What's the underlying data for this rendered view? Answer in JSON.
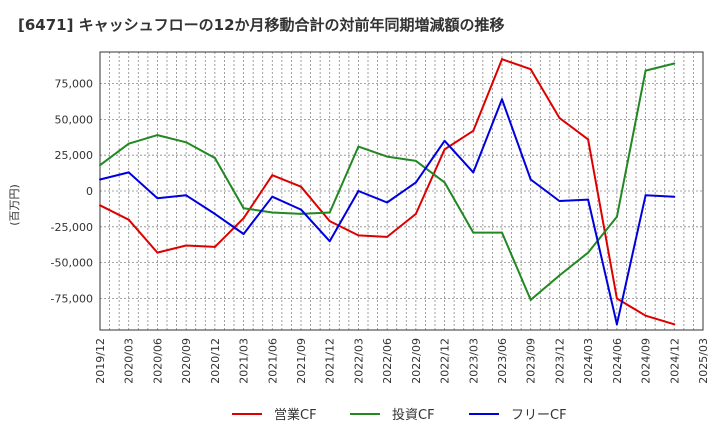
{
  "title": "[6471]  キャッシュフローの12か月移動合計の対前年同期増減額の推移",
  "chart_data": {
    "type": "line",
    "ylabel": "(百万円)",
    "ylim": [
      -97000,
      97000
    ],
    "yticks": [
      75000,
      50000,
      25000,
      0,
      -25000,
      -50000,
      -75000
    ],
    "ytick_labels": [
      "75,000",
      "50,000",
      "25,000",
      "0",
      "-25,000",
      "-50,000",
      "-75,000"
    ],
    "xlim": [
      "2019/12",
      "2025/03"
    ],
    "x_tick_labels": [
      "2019/12",
      "2020/03",
      "2020/06",
      "2020/09",
      "2020/12",
      "2021/03",
      "2021/06",
      "2021/09",
      "2021/12",
      "2022/03",
      "2022/06",
      "2022/09",
      "2022/12",
      "2023/03",
      "2023/06",
      "2023/09",
      "2023/12",
      "2024/03",
      "2024/06",
      "2024/09",
      "2024/12",
      "2025/03"
    ],
    "grid": true,
    "legend_position": "bottom",
    "series": [
      {
        "name": "営業CF",
        "color": "#dd0000",
        "x": [
          "2019/12",
          "2020/03",
          "2020/06",
          "2020/09",
          "2020/12",
          "2021/03",
          "2021/06",
          "2021/09",
          "2021/12",
          "2022/03",
          "2022/06",
          "2022/09",
          "2022/12",
          "2023/03",
          "2023/06",
          "2023/09",
          "2023/12",
          "2024/03",
          "2024/06",
          "2024/09",
          "2024/12"
        ],
        "values": [
          -10000,
          -20000,
          -43000,
          -38000,
          -39000,
          -19000,
          11000,
          3000,
          -21000,
          -31000,
          -32000,
          -16000,
          29000,
          42000,
          92000,
          85000,
          51000,
          36000,
          -75000,
          -87000,
          -93000
        ]
      },
      {
        "name": "投資CF",
        "color": "#228822",
        "x": [
          "2019/12",
          "2020/03",
          "2020/06",
          "2020/09",
          "2020/12",
          "2021/03",
          "2021/06",
          "2021/09",
          "2021/12",
          "2022/03",
          "2022/06",
          "2022/09",
          "2022/12",
          "2023/03",
          "2023/06",
          "2023/09",
          "2023/12",
          "2024/03",
          "2024/06",
          "2024/09",
          "2024/12"
        ],
        "values": [
          18000,
          33000,
          39000,
          34000,
          23000,
          -12000,
          -15000,
          -16000,
          -15000,
          31000,
          24000,
          21000,
          6000,
          -29000,
          -29000,
          -76000,
          -59000,
          -43000,
          -18000,
          84000,
          89000
        ]
      },
      {
        "name": "フリーCF",
        "color": "#0000dd",
        "x": [
          "2019/12",
          "2020/03",
          "2020/06",
          "2020/09",
          "2020/12",
          "2021/03",
          "2021/06",
          "2021/09",
          "2021/12",
          "2022/03",
          "2022/06",
          "2022/09",
          "2022/12",
          "2023/03",
          "2023/06",
          "2023/09",
          "2023/12",
          "2024/03",
          "2024/06",
          "2024/09",
          "2024/12"
        ],
        "values": [
          8000,
          13000,
          -5000,
          -3000,
          -16000,
          -30000,
          -4000,
          -13000,
          -35000,
          0,
          -8000,
          6000,
          35000,
          13000,
          64000,
          8000,
          -7000,
          -6000,
          -93000,
          -3000,
          -4000
        ]
      }
    ]
  }
}
